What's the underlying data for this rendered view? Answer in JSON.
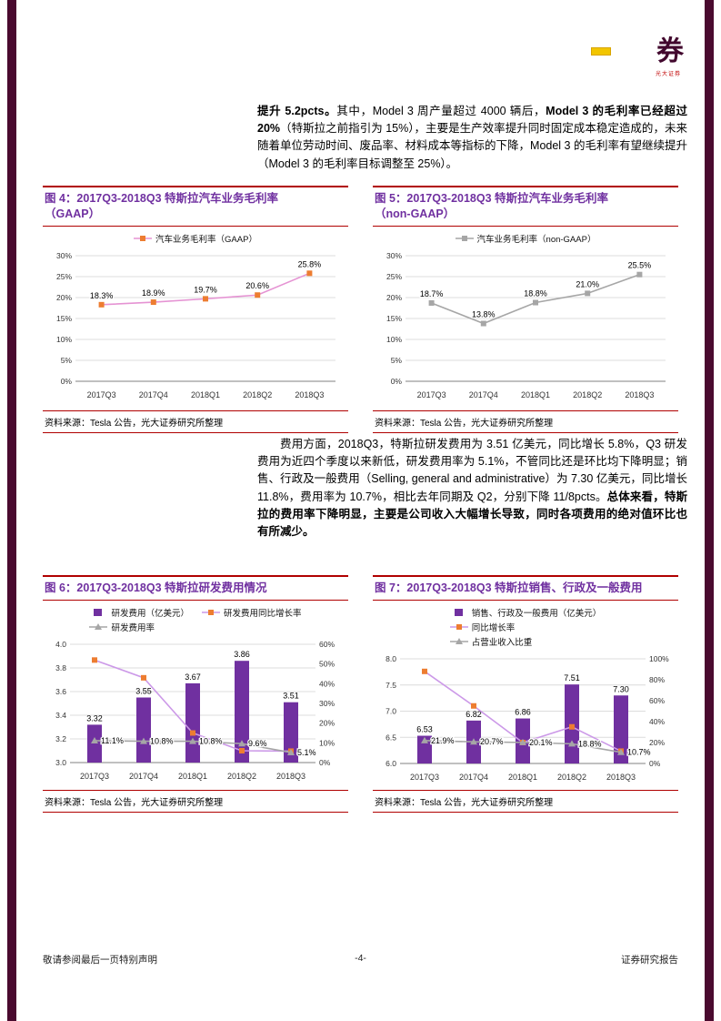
{
  "page": {
    "number": "-4-",
    "footer_left": "敬请参阅最后一页特别声明",
    "footer_right": "证券研究报告"
  },
  "logo": {
    "glyph": "券",
    "caption": "光大证券",
    "mark_color": "#F2C500"
  },
  "colors": {
    "sidebar_maroon": "#4A0A2F",
    "rule_red": "#B00000",
    "title_purple": "#7030A0",
    "bar_purple": "#7030A0",
    "marker_orange": "#ED7D31",
    "line_gray": "#A6A6A6",
    "line_violet": "#CC99E8",
    "line_pink": "#E593D3"
  },
  "paragraphs": {
    "p1": {
      "segments": [
        {
          "t": "提升 5.2pcts。",
          "b": true
        },
        {
          "t": "其中，Model 3 周产量超过 4000 辆后，",
          "b": false
        },
        {
          "t": "Model 3 的毛利率已经超过 20%",
          "b": true
        },
        {
          "t": "（特斯拉之前指引为 15%），主要是生产效率提升同时固定成本稳定造成的，未来随着单位劳动时间、废品率、材料成本等指标的下降，Model 3 的毛利率有望继续提升（Model 3 的毛利率目标调整至 25%）。",
          "b": false
        }
      ]
    },
    "p2": {
      "segments": [
        {
          "t": "费用方面，2018Q3，特斯拉研发费用为 3.51 亿美元，同比增长 5.8%，Q3 研发费用为近四个季度以来新低，研发费用率为 5.1%，不管同比还是环比均下降明显；销售、行政及一般费用（Selling, general and administrative）为 7.30 亿美元，同比增长 11.8%，费用率为 10.7%，相比去年同期及 Q2，分别下降 11/8pcts。",
          "b": false
        },
        {
          "t": "总体来看，特斯拉的费用率下降明显，主要是公司收入大幅增长导致，同时各项费用的绝对值环比也有所减少。",
          "b": true
        }
      ]
    }
  },
  "chart_data": [
    {
      "type": "line",
      "title": "图 4：2017Q3-2018Q3 特斯拉汽车业务毛利率\n（GAAP）",
      "source": "资料来源：Tesla 公告，光大证券研究所整理",
      "categories": [
        "2017Q3",
        "2017Q4",
        "2018Q1",
        "2018Q2",
        "2018Q3"
      ],
      "series": [
        {
          "kind": "line",
          "name": "汽车业务毛利率（GAAP）",
          "axis": "left",
          "values": [
            18.3,
            18.9,
            19.7,
            20.6,
            25.8
          ],
          "labels": [
            "18.3%",
            "18.9%",
            "19.7%",
            "20.6%",
            "25.8%"
          ],
          "label_pos": "above",
          "color": "#E593D3",
          "marker": "square",
          "marker_color": "#ED7D31"
        }
      ],
      "axes": {
        "left": {
          "min": 0,
          "max": 30,
          "step": 5,
          "suffix": "%"
        }
      },
      "legend_rows": [
        [
          0
        ]
      ]
    },
    {
      "type": "line",
      "title": "图 5：2017Q3-2018Q3 特斯拉汽车业务毛利率\n（non-GAAP）",
      "source": "资料来源：Tesla 公告，光大证券研究所整理",
      "categories": [
        "2017Q3",
        "2017Q4",
        "2018Q1",
        "2018Q2",
        "2018Q3"
      ],
      "series": [
        {
          "kind": "line",
          "name": "汽车业务毛利率（non-GAAP）",
          "axis": "left",
          "values": [
            18.7,
            13.8,
            18.8,
            21.0,
            25.5
          ],
          "labels": [
            "18.7%",
            "13.8%",
            "18.8%",
            "21.0%",
            "25.5%"
          ],
          "label_pos": "above",
          "color": "#A6A6A6",
          "marker": "square",
          "marker_color": "#A6A6A6"
        }
      ],
      "axes": {
        "left": {
          "min": 0,
          "max": 30,
          "step": 5,
          "suffix": "%"
        }
      },
      "legend_rows": [
        [
          0
        ]
      ]
    },
    {
      "type": "bar-line",
      "title": "图 6：2017Q3-2018Q3 特斯拉研发费用情况",
      "source": "资料来源：Tesla 公告，光大证券研究所整理",
      "categories": [
        "2017Q3",
        "2017Q4",
        "2018Q1",
        "2018Q2",
        "2018Q3"
      ],
      "series": [
        {
          "kind": "bar",
          "name": "研发费用（亿美元）",
          "axis": "left",
          "values": [
            3.32,
            3.55,
            3.67,
            3.86,
            3.51
          ],
          "labels": [
            "3.32",
            "3.55",
            "3.67",
            "3.86",
            "3.51"
          ],
          "color": "#7030A0"
        },
        {
          "kind": "line",
          "name": "研发费用同比增长率",
          "axis": "right",
          "values": [
            52,
            43,
            15,
            6,
            5.8
          ],
          "color": "#CC99E8",
          "marker": "square",
          "marker_color": "#ED7D31"
        },
        {
          "kind": "line",
          "name": "研发费用率",
          "axis": "right",
          "values": [
            11.1,
            10.8,
            10.8,
            9.6,
            5.1
          ],
          "labels": [
            "11.1%",
            "10.8%",
            "10.8%",
            "9.6%",
            "5.1%"
          ],
          "label_pos": "right",
          "color": "#A6A6A6",
          "marker": "triangle",
          "marker_color": "#A6A6A6"
        }
      ],
      "axes": {
        "left": {
          "min": 3.0,
          "max": 4.0,
          "step": 0.2,
          "decimals": 1
        },
        "right": {
          "min": 0,
          "max": 60,
          "step": 10,
          "suffix": "%"
        }
      },
      "legend_rows": [
        [
          0,
          1
        ],
        [
          2
        ]
      ]
    },
    {
      "type": "bar-line",
      "title": "图 7：2017Q3-2018Q3  特斯拉销售、行政及一般费用",
      "source": "资料来源：Tesla 公告，光大证券研究所整理",
      "categories": [
        "2017Q3",
        "2017Q4",
        "2018Q1",
        "2018Q2",
        "2018Q3"
      ],
      "series": [
        {
          "kind": "bar",
          "name": "销售、行政及一般费用（亿美元）",
          "axis": "left",
          "values": [
            6.53,
            6.82,
            6.86,
            7.51,
            7.3
          ],
          "labels": [
            "6.53",
            "6.82",
            "6.86",
            "7.51",
            "7.30"
          ],
          "color": "#7030A0"
        },
        {
          "kind": "line",
          "name": "同比增长率",
          "axis": "right",
          "values": [
            88,
            55,
            20,
            35,
            11.8
          ],
          "color": "#CC99E8",
          "marker": "square",
          "marker_color": "#ED7D31"
        },
        {
          "kind": "line",
          "name": "占营业收入比重",
          "axis": "right",
          "values": [
            21.9,
            20.7,
            20.1,
            18.8,
            10.7
          ],
          "labels": [
            "21.9%",
            "20.7%",
            "20.1%",
            "18.8%",
            "10.7%"
          ],
          "label_pos": "right",
          "color": "#A6A6A6",
          "marker": "triangle",
          "marker_color": "#A6A6A6"
        }
      ],
      "axes": {
        "left": {
          "min": 6.0,
          "max": 8.0,
          "step": 0.5,
          "decimals": 1
        },
        "right": {
          "min": 0,
          "max": 100,
          "step": 20,
          "suffix": "%"
        }
      },
      "legend_rows": [
        [
          0
        ],
        [
          1
        ],
        [
          2
        ]
      ]
    }
  ]
}
